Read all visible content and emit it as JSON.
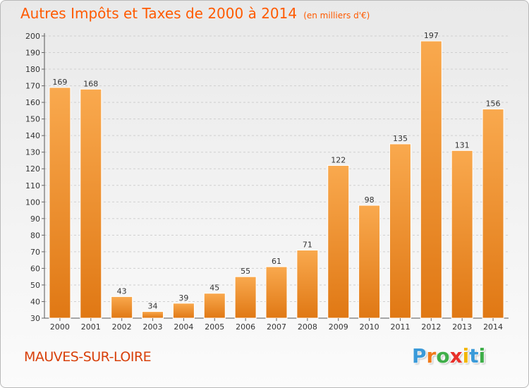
{
  "chart_data": {
    "type": "bar",
    "title": "Autres Impôts et Taxes de 2000 à 2014",
    "subtitle": "(en milliers d'€)",
    "categories": [
      "2000",
      "2001",
      "2002",
      "2003",
      "2004",
      "2005",
      "2006",
      "2007",
      "2008",
      "2009",
      "2010",
      "2011",
      "2012",
      "2013",
      "2014"
    ],
    "values": [
      169,
      168,
      43,
      34,
      39,
      45,
      55,
      61,
      71,
      122,
      98,
      135,
      197,
      131,
      156
    ],
    "ylim": [
      30,
      200
    ],
    "yticks": [
      30,
      40,
      50,
      60,
      70,
      80,
      90,
      100,
      110,
      120,
      130,
      140,
      150,
      160,
      170,
      180,
      190,
      200
    ],
    "grid": true,
    "colors": {
      "bar_top": "#f9a94e",
      "bar_bottom": "#e07814",
      "title": "#ff5a00",
      "grid": "#cfcfcf"
    }
  },
  "footer": {
    "commune": "MAUVES-SUR-LOIRE"
  },
  "logo": {
    "letters": [
      "P",
      "r",
      "o",
      "x",
      "i",
      "t",
      "i"
    ],
    "colors": [
      "#3a9ad9",
      "#f07a1a",
      "#3fae49",
      "#e8302a",
      "#f2b705",
      "#3a9ad9",
      "#3fae49"
    ]
  }
}
